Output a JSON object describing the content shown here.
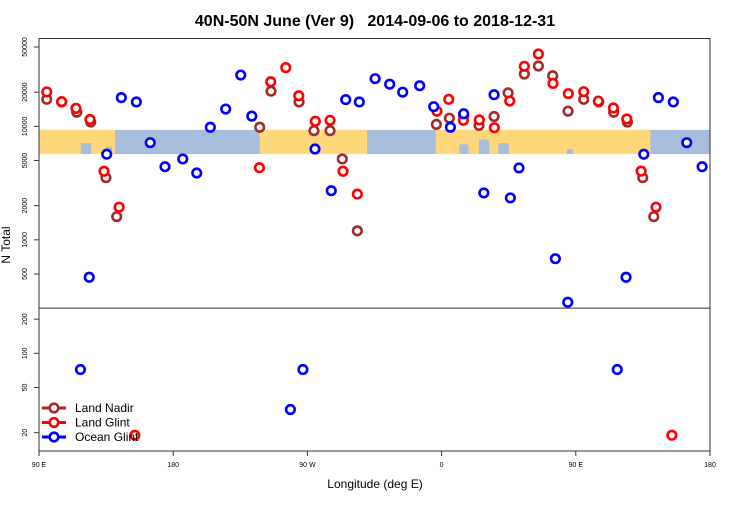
{
  "chart_data": {
    "type": "scatter",
    "title": "40N-50N June (Ver 9)   2014-09-06 to 2018-12-31",
    "xlabel": "Longitude (deg E)",
    "ylabel": "N Total",
    "x_note": "longitude unwrapped: 90 = 90 E, 180 = 180, 270 = 90 W, 360 = 0, 450 = 90 E, 540 = 180",
    "xlim": [
      90,
      540
    ],
    "ylim": [
      13.8,
      60000
    ],
    "yscale": "log",
    "panel_break_value": 250,
    "map_band_range": [
      5700,
      9300
    ],
    "x_ticks": [
      {
        "value": 90,
        "label": "90 E"
      },
      {
        "value": 180,
        "label": "180"
      },
      {
        "value": 270,
        "label": "90 W"
      },
      {
        "value": 360,
        "label": "0"
      },
      {
        "value": 450,
        "label": "90 E"
      },
      {
        "value": 540,
        "label": "180"
      }
    ],
    "y_ticks": [
      {
        "value": 50000,
        "label": "50000"
      },
      {
        "value": 20000,
        "label": "20000"
      },
      {
        "value": 10000,
        "label": "10000"
      },
      {
        "value": 5000,
        "label": "5000"
      },
      {
        "value": 2000,
        "label": "2000"
      },
      {
        "value": 1000,
        "label": "1000"
      },
      {
        "value": 500,
        "label": "500"
      },
      {
        "value": 200,
        "label": "200"
      },
      {
        "value": 100,
        "label": "100"
      },
      {
        "value": 50,
        "label": "50"
      },
      {
        "value": 20,
        "label": "20"
      }
    ],
    "legend_position": "bottom-left",
    "series": [
      {
        "name": "Land Nadir",
        "color": "#A52A2A",
        "points": [
          [
            95.2,
            17300
          ],
          [
            105.2,
            16400
          ],
          [
            115.3,
            13300
          ],
          [
            124.7,
            10900
          ],
          [
            134.9,
            3530
          ],
          [
            142.1,
            1600
          ],
          [
            238,
            9820
          ],
          [
            245.6,
            20400
          ],
          [
            264.4,
            16400
          ],
          [
            274.4,
            9160
          ],
          [
            285.2,
            9160
          ],
          [
            293.4,
            5160
          ],
          [
            303.5,
            1200
          ],
          [
            356.5,
            10400
          ],
          [
            365.2,
            11800
          ],
          [
            374.8,
            12300
          ],
          [
            385.1,
            10200
          ],
          [
            395.2,
            12200
          ],
          [
            404.6,
            19700
          ],
          [
            415.5,
            28900
          ],
          [
            424.9,
            34000
          ],
          [
            434.5,
            27900
          ],
          [
            444.8,
            13600
          ],
          [
            455.3,
            17300
          ],
          [
            465.4,
            16400
          ],
          [
            475.4,
            13300
          ],
          [
            484.6,
            10900
          ],
          [
            494.9,
            3530
          ],
          [
            502.3,
            1600
          ]
        ]
      },
      {
        "name": "Land Glint",
        "color": "#FF0000",
        "points": [
          [
            95.2,
            20100
          ],
          [
            105.2,
            16500
          ],
          [
            114.8,
            14400
          ],
          [
            124.2,
            11500
          ],
          [
            133.6,
            4020
          ],
          [
            143.7,
            1940
          ],
          [
            154.3,
            19
          ],
          [
            237.8,
            4320
          ],
          [
            245.4,
            24700
          ],
          [
            255.5,
            32900
          ],
          [
            264.2,
            18600
          ],
          [
            275.3,
            11100
          ],
          [
            285.2,
            11300
          ],
          [
            293.9,
            4020
          ],
          [
            303.5,
            2530
          ],
          [
            356.9,
            13600
          ],
          [
            364.8,
            17300
          ],
          [
            374.6,
            11300
          ],
          [
            385.3,
            11400
          ],
          [
            395.4,
            9730
          ],
          [
            405.7,
            16700
          ],
          [
            415.5,
            33800
          ],
          [
            424.9,
            43400
          ],
          [
            434.7,
            23900
          ],
          [
            445,
            19400
          ],
          [
            455.3,
            20200
          ],
          [
            465.1,
            16700
          ],
          [
            475.2,
            14500
          ],
          [
            484.2,
            11600
          ],
          [
            493.8,
            4030
          ],
          [
            503.8,
            1940
          ],
          [
            514.4,
            19
          ]
        ]
      },
      {
        "name": "Ocean Glint",
        "color": "#0000FF",
        "points": [
          [
            117.8,
            72
          ],
          [
            123.7,
            468
          ],
          [
            135.4,
            5680
          ],
          [
            145.2,
            17900
          ],
          [
            155.3,
            16400
          ],
          [
            164.6,
            7180
          ],
          [
            174.5,
            4410
          ],
          [
            186.4,
            5160
          ],
          [
            195.8,
            3880
          ],
          [
            204.9,
            9820
          ],
          [
            215.2,
            14200
          ],
          [
            225.3,
            28300
          ],
          [
            232.7,
            12300
          ],
          [
            258.6,
            32
          ],
          [
            267,
            72
          ],
          [
            275.1,
            6310
          ],
          [
            286,
            2710
          ],
          [
            295.7,
            17200
          ],
          [
            304.8,
            16400
          ],
          [
            315.4,
            26300
          ],
          [
            325.2,
            23500
          ],
          [
            333.9,
            20000
          ],
          [
            345.3,
            22800
          ],
          [
            354.7,
            14900
          ],
          [
            365.9,
            9820
          ],
          [
            374.8,
            12900
          ],
          [
            388.3,
            2590
          ],
          [
            395.2,
            19000
          ],
          [
            406.1,
            2340
          ],
          [
            411.9,
            4300
          ],
          [
            436.3,
            682
          ],
          [
            444.6,
            282
          ],
          [
            477.8,
            72
          ],
          [
            483.7,
            468
          ],
          [
            495.6,
            5680
          ],
          [
            505.4,
            17900
          ],
          [
            515.4,
            16400
          ],
          [
            524.4,
            7180
          ],
          [
            534.7,
            4410
          ]
        ]
      }
    ]
  },
  "map_colors": {
    "land": "#FDD77A",
    "ocean": "#A7BDDC"
  }
}
